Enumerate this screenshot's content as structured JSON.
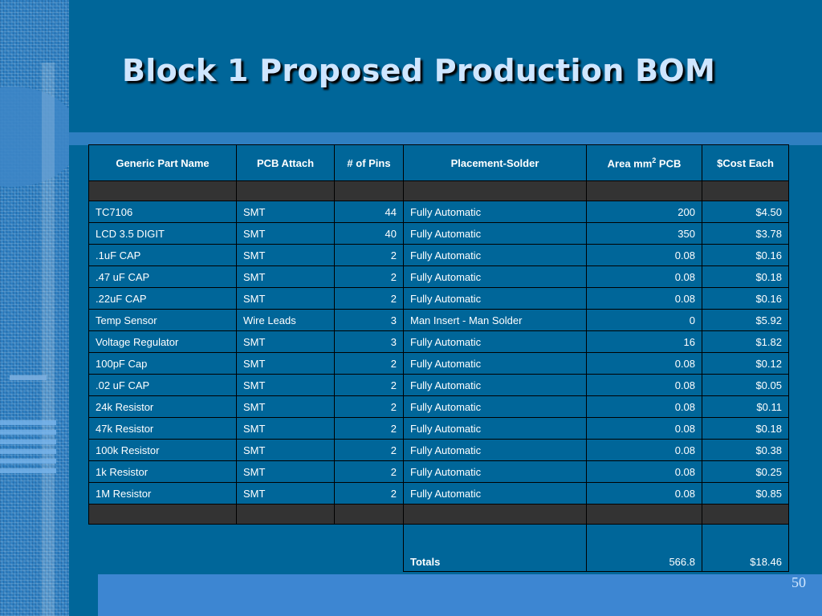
{
  "slide": {
    "title": "Block 1 Proposed Production BOM",
    "page_number": "50"
  },
  "table": {
    "columns": [
      "Generic Part Name",
      "PCB Attach",
      "# of Pins",
      "Placement-Solder",
      "Area mm",
      "$Cost Each"
    ],
    "area_sup": "2",
    "area_suffix": " PCB",
    "rows": [
      {
        "name": "TC7106",
        "attach": "SMT",
        "pins": "44",
        "placement": "Fully Automatic",
        "area": "200",
        "cost": "$4.50"
      },
      {
        "name": "LCD 3.5 DIGIT",
        "attach": "SMT",
        "pins": "40",
        "placement": "Fully Automatic",
        "area": "350",
        "cost": "$3.78"
      },
      {
        "name": ".1uF CAP",
        "attach": "SMT",
        "pins": "2",
        "placement": "Fully Automatic",
        "area": "0.08",
        "cost": "$0.16"
      },
      {
        "name": ".47 uF CAP",
        "attach": "SMT",
        "pins": "2",
        "placement": "Fully Automatic",
        "area": "0.08",
        "cost": "$0.18"
      },
      {
        "name": ".22uF CAP",
        "attach": "SMT",
        "pins": "2",
        "placement": "Fully Automatic",
        "area": "0.08",
        "cost": "$0.16"
      },
      {
        "name": "Temp Sensor",
        "attach": "Wire Leads",
        "pins": "3",
        "placement": "Man Insert - Man Solder",
        "area": "0",
        "cost": "$5.92"
      },
      {
        "name": "Voltage Regulator",
        "attach": "SMT",
        "pins": "3",
        "placement": "Fully Automatic",
        "area": "16",
        "cost": "$1.82"
      },
      {
        "name": "100pF Cap",
        "attach": "SMT",
        "pins": "2",
        "placement": "Fully Automatic",
        "area": "0.08",
        "cost": "$0.12"
      },
      {
        "name": ".02 uF CAP",
        "attach": "SMT",
        "pins": "2",
        "placement": "Fully Automatic",
        "area": "0.08",
        "cost": "$0.05"
      },
      {
        "name": "24k  Resistor",
        "attach": "SMT",
        "pins": "2",
        "placement": "Fully Automatic",
        "area": "0.08",
        "cost": "$0.11"
      },
      {
        "name": "47k  Resistor",
        "attach": "SMT",
        "pins": "2",
        "placement": "Fully Automatic",
        "area": "0.08",
        "cost": "$0.18"
      },
      {
        "name": "100k  Resistor",
        "attach": "SMT",
        "pins": "2",
        "placement": "Fully Automatic",
        "area": "0.08",
        "cost": "$0.38"
      },
      {
        "name": "1k  Resistor",
        "attach": "SMT",
        "pins": "2",
        "placement": "Fully Automatic",
        "area": "0.08",
        "cost": "$0.25"
      },
      {
        "name": "1M  Resistor",
        "attach": "SMT",
        "pins": "2",
        "placement": "Fully Automatic",
        "area": "0.08",
        "cost": "$0.85"
      }
    ],
    "totals": {
      "label": "Totals",
      "area": "566.8",
      "cost": "$18.46"
    }
  },
  "colors": {
    "background": "#006699",
    "title_text": "#cfe6ff",
    "blank_row": "#333333",
    "accent_band": "#2f7fc1"
  }
}
